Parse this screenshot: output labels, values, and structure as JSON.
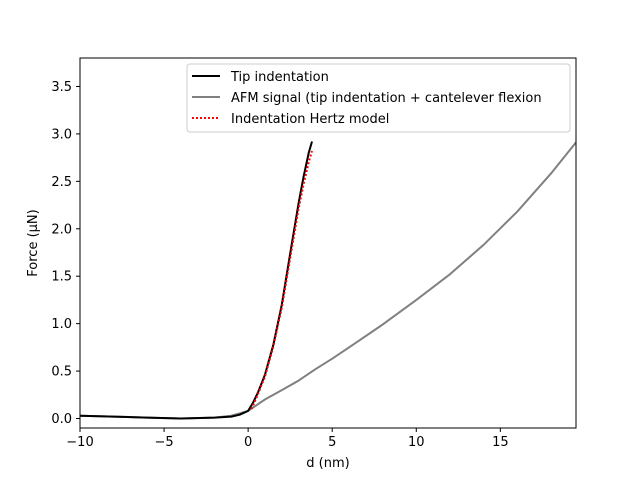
{
  "chart_data": {
    "type": "line",
    "title": "",
    "xlabel": "d (nm)",
    "ylabel": "Force (µN)",
    "xlim": [
      -10,
      19.5
    ],
    "ylim": [
      -0.1,
      3.8
    ],
    "xticks": [
      -10,
      -5,
      0,
      5,
      10,
      15
    ],
    "yticks": [
      0.0,
      0.5,
      1.0,
      1.5,
      2.0,
      2.5,
      3.0,
      3.5
    ],
    "xtick_labels": [
      "−10",
      "−5",
      "0",
      "5",
      "10",
      "15"
    ],
    "ytick_labels": [
      "0.0",
      "0.5",
      "1.0",
      "1.5",
      "2.0",
      "2.5",
      "3.0",
      "3.5"
    ],
    "grid": false,
    "legend_position": "top-right",
    "series": [
      {
        "name": "Tip indentation",
        "color": "#000000",
        "style": "solid",
        "x": [
          -10,
          -8,
          -6,
          -4,
          -2,
          -1,
          -0.5,
          0,
          0.3,
          0.6,
          1.0,
          1.5,
          2.0,
          2.5,
          3.0,
          3.3,
          3.6,
          3.8
        ],
        "y": [
          0.03,
          0.02,
          0.01,
          0.0,
          0.01,
          0.02,
          0.04,
          0.08,
          0.17,
          0.28,
          0.46,
          0.78,
          1.2,
          1.74,
          2.27,
          2.55,
          2.8,
          2.92
        ]
      },
      {
        "name": "AFM signal (tip indentation + cantelever flexion",
        "color": "#808080",
        "style": "solid",
        "x": [
          -10,
          -8,
          -6,
          -4,
          -2,
          -1,
          0,
          0.5,
          1,
          2,
          3,
          4,
          5,
          6,
          8,
          10,
          12,
          14,
          16,
          18,
          19.5
        ],
        "y": [
          0.03,
          0.02,
          0.01,
          0.0,
          0.01,
          0.03,
          0.08,
          0.14,
          0.2,
          0.3,
          0.4,
          0.52,
          0.63,
          0.75,
          0.99,
          1.25,
          1.52,
          1.83,
          2.18,
          2.58,
          2.91
        ]
      },
      {
        "name": "Indentation Hertz model",
        "color": "#ff0000",
        "style": "dotted",
        "x": [
          0.2,
          0.5,
          1.0,
          1.5,
          2.0,
          2.5,
          3.0,
          3.3,
          3.6,
          3.8
        ],
        "y": [
          0.1,
          0.22,
          0.44,
          0.76,
          1.17,
          1.69,
          2.21,
          2.47,
          2.7,
          2.82
        ]
      }
    ]
  }
}
